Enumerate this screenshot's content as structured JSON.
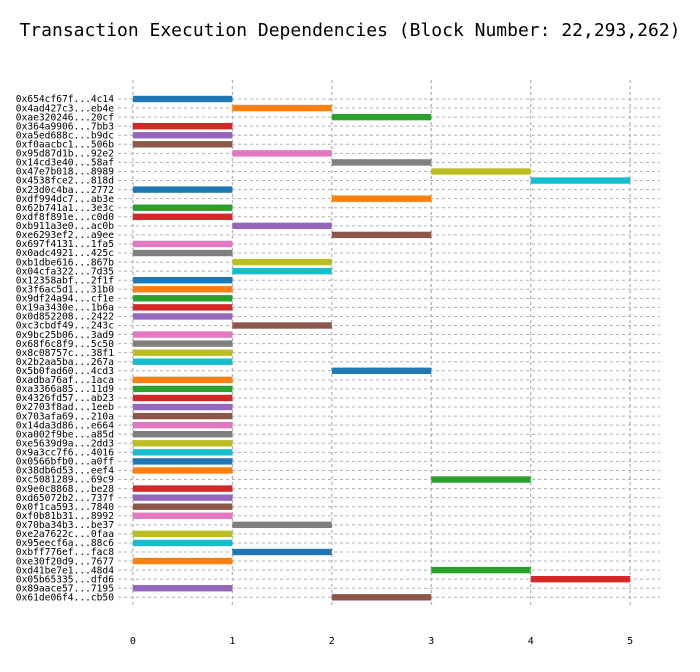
{
  "chart_data": {
    "type": "bar",
    "orientation": "horizontal-gantt",
    "title": "Transaction Execution Dependencies (Block Number: 22,293,262)",
    "xlabel": "",
    "ylabel": "",
    "xlim": [
      -0.15,
      5.3
    ],
    "xticks": [
      0,
      1,
      2,
      3,
      4,
      5
    ],
    "grid": true,
    "colors": [
      "#1f77b4",
      "#ff7f0e",
      "#2ca02c",
      "#d62728",
      "#9467bd",
      "#8c564b",
      "#e377c2",
      "#7f7f7f",
      "#bcbd22",
      "#17becf"
    ],
    "transactions": [
      {
        "label": "0x654cf67f...4c14",
        "start": 0,
        "end": 1
      },
      {
        "label": "0x4ad427c3...eb4e",
        "start": 1,
        "end": 2
      },
      {
        "label": "0xae320246...20cf",
        "start": 2,
        "end": 3
      },
      {
        "label": "0x364a9906...7bb3",
        "start": 0,
        "end": 1
      },
      {
        "label": "0xa5ed688c...b9dc",
        "start": 0,
        "end": 1
      },
      {
        "label": "0xf0aacbc1...506b",
        "start": 0,
        "end": 1
      },
      {
        "label": "0x95d87d1b...92e2",
        "start": 1,
        "end": 2
      },
      {
        "label": "0x14cd3e40...58af",
        "start": 2,
        "end": 3
      },
      {
        "label": "0x47e7b018...8989",
        "start": 3,
        "end": 4
      },
      {
        "label": "0x4538fce2...818d",
        "start": 4,
        "end": 5
      },
      {
        "label": "0x23d0c4ba...2772",
        "start": 0,
        "end": 1
      },
      {
        "label": "0xdf994dc7...ab3e",
        "start": 2,
        "end": 3
      },
      {
        "label": "0x62b741a1...3e3c",
        "start": 0,
        "end": 1
      },
      {
        "label": "0xdf8f891e...c0d0",
        "start": 0,
        "end": 1
      },
      {
        "label": "0xb911a3e0...ac0b",
        "start": 1,
        "end": 2
      },
      {
        "label": "0xe6293ef2...a9ee",
        "start": 2,
        "end": 3
      },
      {
        "label": "0x697f4131...1fa5",
        "start": 0,
        "end": 1
      },
      {
        "label": "0x0adc4921...425c",
        "start": 0,
        "end": 1
      },
      {
        "label": "0xb1dbe616...867b",
        "start": 1,
        "end": 2
      },
      {
        "label": "0x04cfa322...7d35",
        "start": 1,
        "end": 2
      },
      {
        "label": "0x12358abf...2f1f",
        "start": 0,
        "end": 1
      },
      {
        "label": "0x3f6ac5d1...31b0",
        "start": 0,
        "end": 1
      },
      {
        "label": "0x9df24a94...cf1e",
        "start": 0,
        "end": 1
      },
      {
        "label": "0x19a3430e...1b6a",
        "start": 0,
        "end": 1
      },
      {
        "label": "0x0d852208...2422",
        "start": 0,
        "end": 1
      },
      {
        "label": "0xc3cbdf49...243c",
        "start": 1,
        "end": 2
      },
      {
        "label": "0x9bc25b06...3ad9",
        "start": 0,
        "end": 1
      },
      {
        "label": "0x68f6c8f9...5c50",
        "start": 0,
        "end": 1
      },
      {
        "label": "0x8c08757c...38f1",
        "start": 0,
        "end": 1
      },
      {
        "label": "0x2b2aa5ba...267a",
        "start": 0,
        "end": 1
      },
      {
        "label": "0x5b0fad60...4cd3",
        "start": 2,
        "end": 3
      },
      {
        "label": "0xadba76af...1aca",
        "start": 0,
        "end": 1
      },
      {
        "label": "0xa3366a85...11d9",
        "start": 0,
        "end": 1
      },
      {
        "label": "0x4326fd57...ab23",
        "start": 0,
        "end": 1
      },
      {
        "label": "0x2703f8ad...1eeb",
        "start": 0,
        "end": 1
      },
      {
        "label": "0x703afa69...210a",
        "start": 0,
        "end": 1
      },
      {
        "label": "0x14da3d86...e664",
        "start": 0,
        "end": 1
      },
      {
        "label": "0xa002f9be...a85d",
        "start": 0,
        "end": 1
      },
      {
        "label": "0xe5639d9a...2dd3",
        "start": 0,
        "end": 1
      },
      {
        "label": "0x9a3cc7f6...4016",
        "start": 0,
        "end": 1
      },
      {
        "label": "0x0566bfb0...a0ff",
        "start": 0,
        "end": 1
      },
      {
        "label": "0x38db6d53...eef4",
        "start": 0,
        "end": 1
      },
      {
        "label": "0xc5081289...69c9",
        "start": 3,
        "end": 4
      },
      {
        "label": "0x9e0c8868...be28",
        "start": 0,
        "end": 1
      },
      {
        "label": "0xd65072b2...737f",
        "start": 0,
        "end": 1
      },
      {
        "label": "0x0f1ca593...7840",
        "start": 0,
        "end": 1
      },
      {
        "label": "0xf0b81b31...8992",
        "start": 0,
        "end": 1
      },
      {
        "label": "0x70ba34b3...be37",
        "start": 1,
        "end": 2
      },
      {
        "label": "0xe2a7622c...0faa",
        "start": 0,
        "end": 1
      },
      {
        "label": "0x95eecf6a...88c6",
        "start": 0,
        "end": 1
      },
      {
        "label": "0xbff776ef...fac8",
        "start": 1,
        "end": 2
      },
      {
        "label": "0xe30f20d9...7677",
        "start": 0,
        "end": 1
      },
      {
        "label": "0xd41be7e1...48d4",
        "start": 3,
        "end": 4
      },
      {
        "label": "0x05b65335...dfd6",
        "start": 4,
        "end": 5
      },
      {
        "label": "0x89aace57...7195",
        "start": 0,
        "end": 1
      },
      {
        "label": "0x61de06f4...cb50",
        "start": 2,
        "end": 3
      }
    ]
  }
}
